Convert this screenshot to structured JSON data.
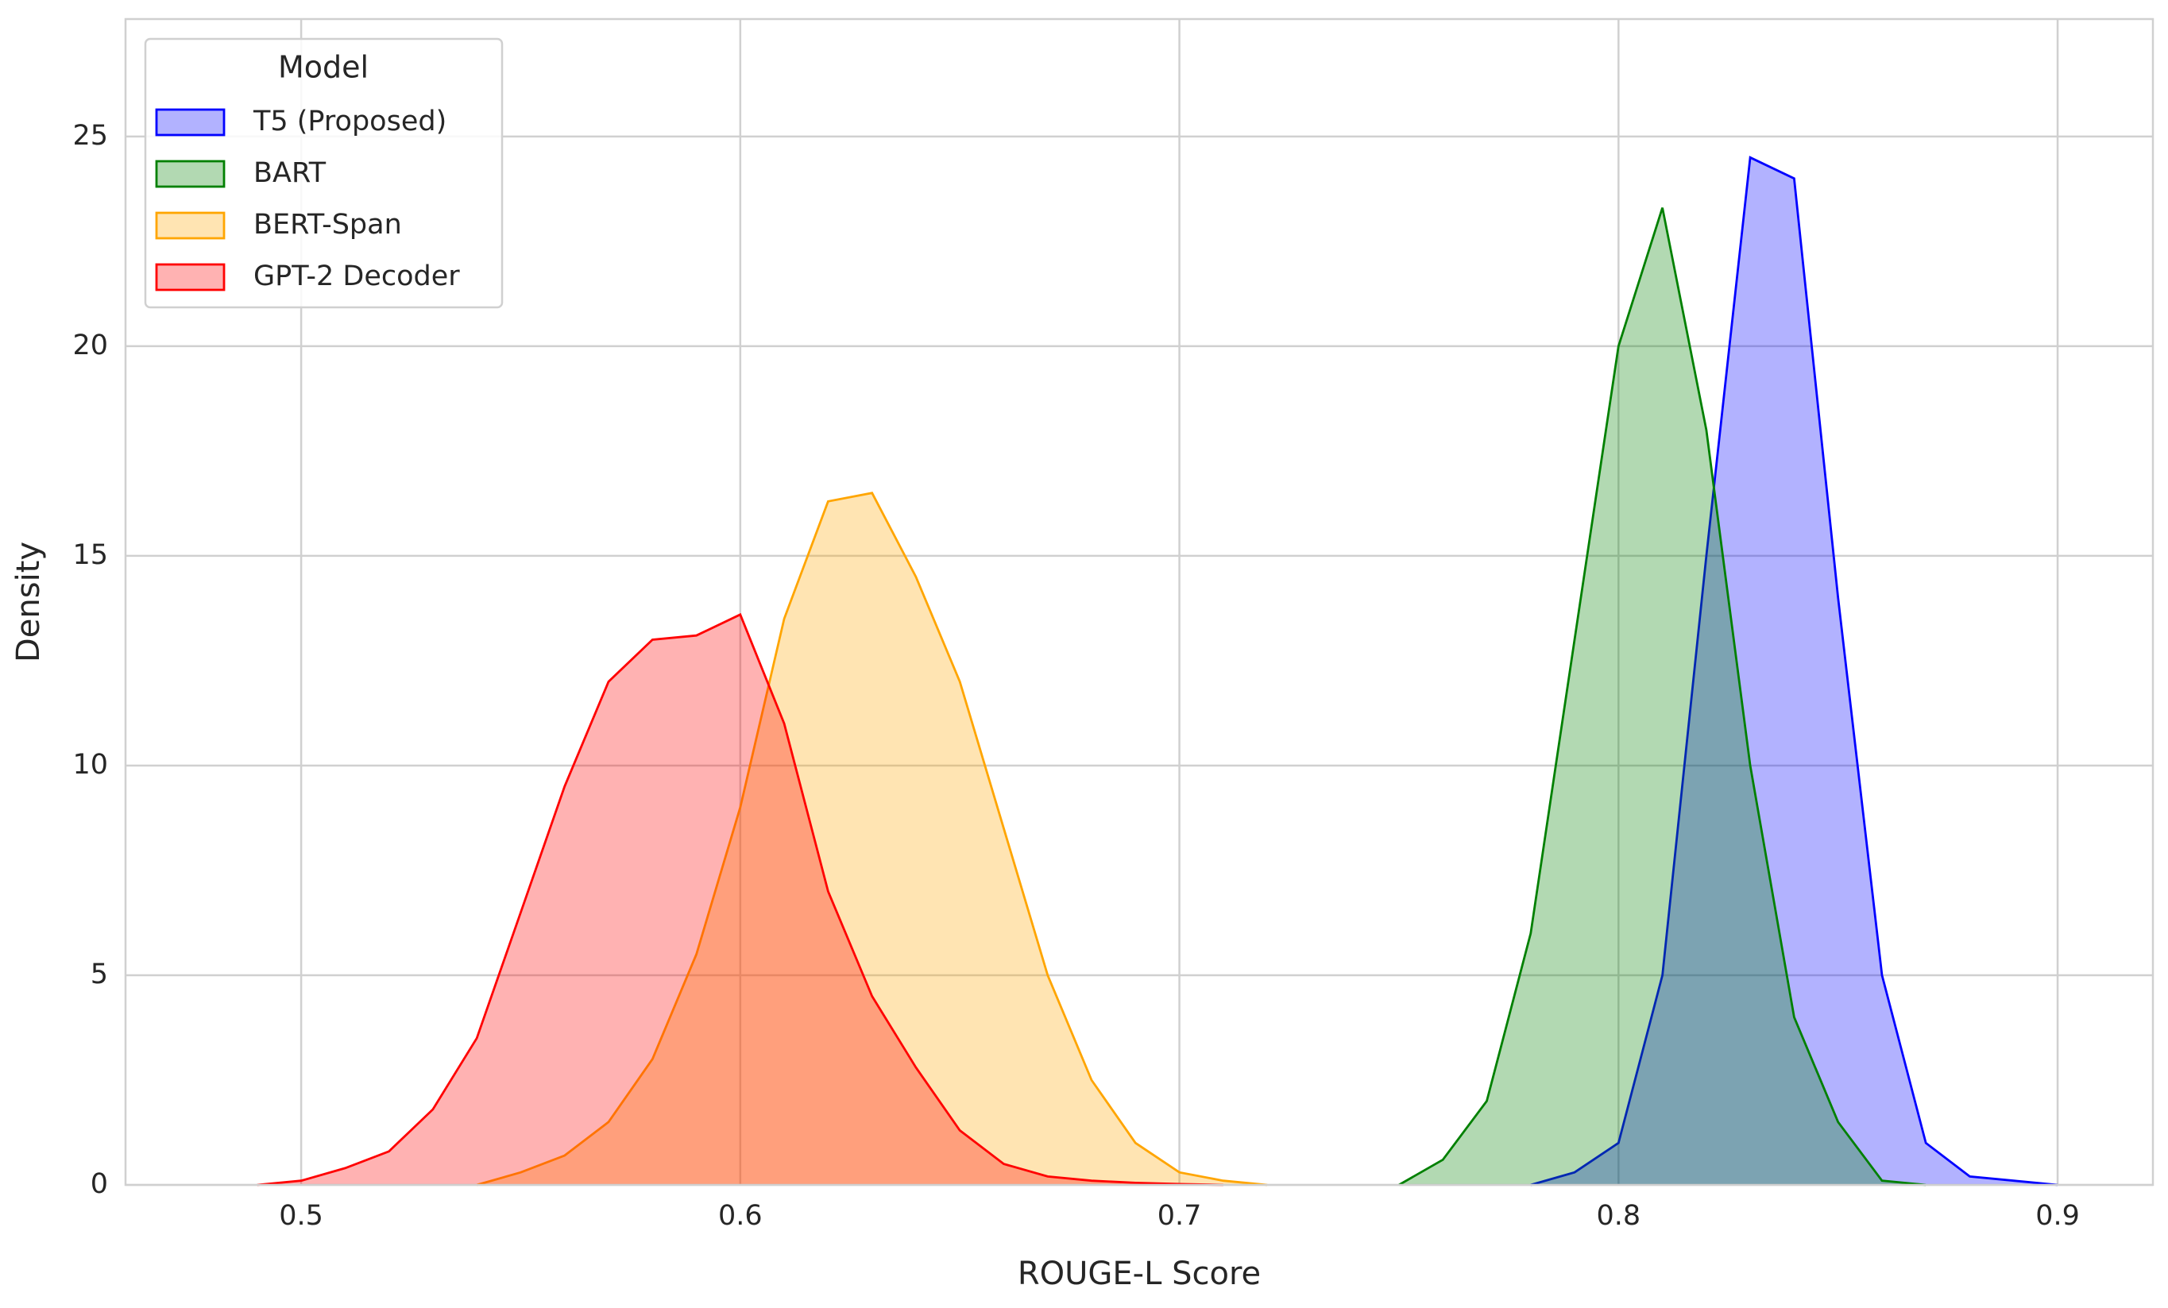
{
  "chart_data": {
    "type": "kde",
    "xlabel": "ROUGE-L Score",
    "ylabel": "Density",
    "xlim": [
      0.46,
      0.9217
    ],
    "ylim": [
      0,
      27.8
    ],
    "xticks": [
      0.5,
      0.6,
      0.7,
      0.8,
      0.9
    ],
    "yticks": [
      0,
      5,
      10,
      15,
      20,
      25
    ],
    "grid": true,
    "legend": "upper left",
    "legend_title": "Model",
    "series": [
      {
        "name": "T5 (Proposed)",
        "color": "#0000ff",
        "x": [
          0.78,
          0.79,
          0.8,
          0.81,
          0.82,
          0.83,
          0.84,
          0.85,
          0.86,
          0.87,
          0.88,
          0.89,
          0.9
        ],
        "values": [
          0,
          0.3,
          1,
          5,
          15,
          24.5,
          24,
          14,
          5,
          1,
          0.2,
          0.1,
          0
        ]
      },
      {
        "name": "BART",
        "color": "#008000",
        "x": [
          0.75,
          0.76,
          0.77,
          0.78,
          0.79,
          0.8,
          0.81,
          0.82,
          0.83,
          0.84,
          0.85,
          0.86,
          0.87
        ],
        "values": [
          0,
          0.6,
          2,
          6,
          13,
          20,
          23.3,
          18,
          10,
          4,
          1.5,
          0.1,
          0
        ]
      },
      {
        "name": "BERT-Span",
        "color": "#ffa500",
        "x": [
          0.54,
          0.55,
          0.56,
          0.57,
          0.58,
          0.59,
          0.6,
          0.61,
          0.62,
          0.63,
          0.64,
          0.65,
          0.66,
          0.67,
          0.68,
          0.69,
          0.7,
          0.71,
          0.72
        ],
        "values": [
          0,
          0.3,
          0.7,
          1.5,
          3,
          5.5,
          9,
          13.5,
          16.3,
          16.5,
          14.5,
          12,
          8.5,
          5,
          2.5,
          1,
          0.3,
          0.1,
          0
        ]
      },
      {
        "name": "GPT-2 Decoder",
        "color": "#ff0000",
        "x": [
          0.49,
          0.5,
          0.51,
          0.52,
          0.53,
          0.54,
          0.55,
          0.56,
          0.57,
          0.58,
          0.59,
          0.6,
          0.61,
          0.62,
          0.63,
          0.64,
          0.65,
          0.66,
          0.67,
          0.68,
          0.69,
          0.7,
          0.71
        ],
        "values": [
          0,
          0.1,
          0.4,
          0.8,
          1.8,
          3.5,
          6.5,
          9.5,
          12,
          13,
          13.1,
          13.6,
          11,
          7,
          4.5,
          2.8,
          1.3,
          0.5,
          0.2,
          0.1,
          0.05,
          0.02,
          0
        ]
      }
    ]
  }
}
